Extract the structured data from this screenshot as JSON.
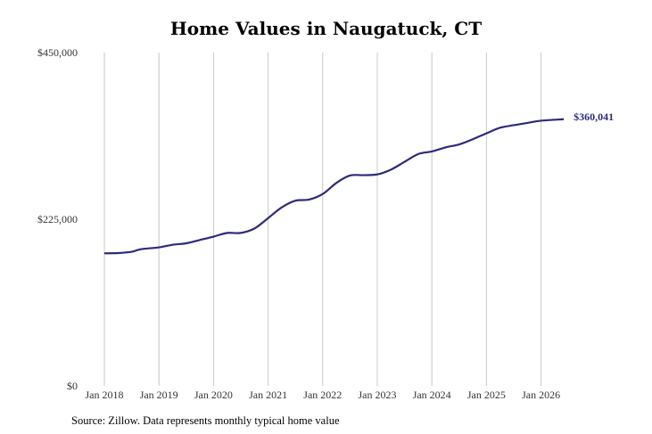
{
  "chart_data": {
    "type": "line",
    "title": "Home Values in Naugatuck, CT",
    "xlabel": "",
    "ylabel": "",
    "ylim": [
      0,
      450000
    ],
    "yticks": [
      "$450,000",
      "$225,000",
      "$0"
    ],
    "xticks": [
      "Jan 2018",
      "Jan 2019",
      "Jan 2020",
      "Jan 2021",
      "Jan 2022",
      "Jan 2023",
      "Jan 2024",
      "Jan 2025",
      "Jan 2026"
    ],
    "grid": "vertical",
    "series": [
      {
        "color": "#2e2a7a",
        "end_label": "$360,041",
        "points": [
          [
            "2018-01",
            179000
          ],
          [
            "2018-04",
            179300
          ],
          [
            "2018-07",
            181000
          ],
          [
            "2018-09",
            184500
          ],
          [
            "2019-01",
            187000
          ],
          [
            "2019-04",
            190500
          ],
          [
            "2019-07",
            192500
          ],
          [
            "2019-10",
            197000
          ],
          [
            "2020-01",
            201500
          ],
          [
            "2020-04",
            206500
          ],
          [
            "2020-07",
            206500
          ],
          [
            "2020-10",
            212500
          ],
          [
            "2021-01",
            226500
          ],
          [
            "2021-04",
            241000
          ],
          [
            "2021-07",
            250000
          ],
          [
            "2021-10",
            251500
          ],
          [
            "2022-01",
            259000
          ],
          [
            "2022-04",
            274000
          ],
          [
            "2022-07",
            284000
          ],
          [
            "2022-10",
            284500
          ],
          [
            "2023-01",
            285500
          ],
          [
            "2023-04",
            292000
          ],
          [
            "2023-07",
            302500
          ],
          [
            "2023-10",
            313000
          ],
          [
            "2024-01",
            316500
          ],
          [
            "2024-04",
            322000
          ],
          [
            "2024-07",
            326000
          ],
          [
            "2024-10",
            333000
          ],
          [
            "2025-01",
            341000
          ],
          [
            "2025-04",
            348500
          ],
          [
            "2025-07",
            352000
          ],
          [
            "2025-10",
            355000
          ],
          [
            "2026-01",
            358000
          ],
          [
            "2026-06",
            360041
          ]
        ]
      }
    ]
  },
  "source_note": "Source: Zillow. Data represents monthly typical home value"
}
